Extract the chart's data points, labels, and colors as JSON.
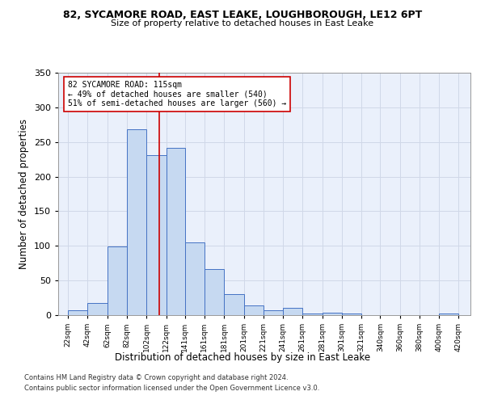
{
  "title_line1": "82, SYCAMORE ROAD, EAST LEAKE, LOUGHBOROUGH, LE12 6PT",
  "title_line2": "Size of property relative to detached houses in East Leake",
  "xlabel": "Distribution of detached houses by size in East Leake",
  "ylabel": "Number of detached properties",
  "footer_line1": "Contains HM Land Registry data © Crown copyright and database right 2024.",
  "footer_line2": "Contains public sector information licensed under the Open Government Licence v3.0.",
  "annotation_line1": "82 SYCAMORE ROAD: 115sqm",
  "annotation_line2": "← 49% of detached houses are smaller (540)",
  "annotation_line3": "51% of semi-detached houses are larger (560) →",
  "bar_left_edges": [
    22,
    42,
    62,
    82,
    102,
    122,
    141,
    161,
    181,
    201,
    221,
    241,
    261,
    281,
    301,
    321,
    340,
    360,
    380,
    400
  ],
  "bar_heights": [
    7,
    18,
    99,
    268,
    231,
    241,
    105,
    66,
    30,
    14,
    7,
    10,
    2,
    3,
    2,
    0,
    0,
    0,
    0,
    2
  ],
  "bar_widths": [
    20,
    20,
    20,
    20,
    20,
    19,
    20,
    20,
    20,
    20,
    20,
    20,
    20,
    20,
    20,
    19,
    20,
    20,
    20,
    20
  ],
  "bar_color": "#c6d9f1",
  "bar_edge_color": "#4472c4",
  "vline_color": "#cc0000",
  "vline_x": 115,
  "annotation_box_color": "#cc0000",
  "grid_color": "#d0d8e8",
  "background_color": "#eaf0fb",
  "tick_labels": [
    "22sqm",
    "42sqm",
    "62sqm",
    "82sqm",
    "102sqm",
    "122sqm",
    "141sqm",
    "161sqm",
    "181sqm",
    "201sqm",
    "221sqm",
    "241sqm",
    "261sqm",
    "281sqm",
    "301sqm",
    "321sqm",
    "340sqm",
    "360sqm",
    "380sqm",
    "400sqm",
    "420sqm"
  ],
  "tick_positions": [
    22,
    42,
    62,
    82,
    102,
    122,
    141,
    161,
    181,
    201,
    221,
    241,
    261,
    281,
    301,
    321,
    340,
    360,
    380,
    400,
    420
  ],
  "ylim": [
    0,
    350
  ],
  "xlim": [
    12,
    432
  ],
  "yticks": [
    0,
    50,
    100,
    150,
    200,
    250,
    300,
    350
  ]
}
